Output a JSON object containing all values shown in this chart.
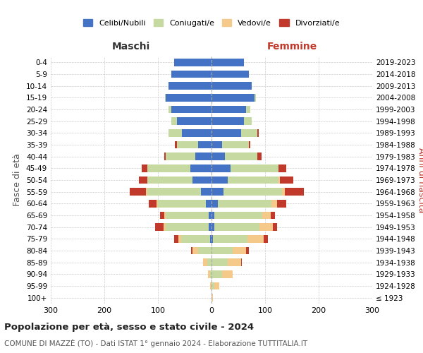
{
  "age_groups": [
    "100+",
    "95-99",
    "90-94",
    "85-89",
    "80-84",
    "75-79",
    "70-74",
    "65-69",
    "60-64",
    "55-59",
    "50-54",
    "45-49",
    "40-44",
    "35-39",
    "30-34",
    "25-29",
    "20-24",
    "15-19",
    "10-14",
    "5-9",
    "0-4"
  ],
  "birth_years": [
    "≤ 1923",
    "1924-1928",
    "1929-1933",
    "1934-1938",
    "1939-1943",
    "1944-1948",
    "1949-1953",
    "1954-1958",
    "1959-1963",
    "1964-1968",
    "1969-1973",
    "1974-1978",
    "1979-1983",
    "1984-1988",
    "1989-1993",
    "1994-1998",
    "1999-2003",
    "2004-2008",
    "2009-2013",
    "2014-2018",
    "2019-2023"
  ],
  "colors": {
    "celibe": "#4472C4",
    "coniugato": "#C5D9A0",
    "vedovo": "#F5C98A",
    "divorziato": "#C0392B"
  },
  "maschi": {
    "celibe": [
      0,
      0,
      0,
      0,
      0,
      2,
      5,
      5,
      10,
      20,
      35,
      40,
      30,
      25,
      55,
      65,
      75,
      85,
      80,
      75,
      70
    ],
    "coniugato": [
      0,
      0,
      2,
      8,
      25,
      55,
      80,
      80,
      90,
      100,
      85,
      80,
      55,
      40,
      25,
      10,
      5,
      2,
      0,
      0,
      0
    ],
    "vedovo": [
      0,
      2,
      5,
      8,
      10,
      5,
      5,
      3,
      2,
      2,
      0,
      0,
      0,
      0,
      0,
      0,
      0,
      0,
      0,
      0,
      0
    ],
    "divorziato": [
      0,
      0,
      0,
      0,
      3,
      8,
      15,
      8,
      15,
      30,
      15,
      10,
      3,
      3,
      0,
      0,
      0,
      0,
      0,
      0,
      0
    ]
  },
  "femmine": {
    "celibe": [
      0,
      0,
      0,
      0,
      0,
      2,
      5,
      5,
      12,
      22,
      30,
      35,
      25,
      20,
      55,
      60,
      65,
      80,
      75,
      70,
      60
    ],
    "coniugato": [
      0,
      5,
      20,
      30,
      40,
      65,
      85,
      90,
      100,
      110,
      95,
      90,
      60,
      50,
      30,
      15,
      8,
      3,
      0,
      0,
      0
    ],
    "vedovo": [
      2,
      10,
      20,
      25,
      25,
      30,
      25,
      15,
      10,
      5,
      3,
      0,
      0,
      0,
      0,
      0,
      0,
      0,
      0,
      0,
      0
    ],
    "divorziato": [
      0,
      0,
      0,
      2,
      5,
      8,
      8,
      8,
      18,
      35,
      25,
      15,
      8,
      3,
      3,
      0,
      0,
      0,
      0,
      0,
      0
    ]
  },
  "xlim": 300,
  "title_main": "Popolazione per età, sesso e stato civile - 2024",
  "title_sub1": "COMUNE DI MAZZÈ (TO) - Dati ISTAT 1° gennaio 2024 - Elaborazione TUTTITALIA.IT",
  "ylabel_left": "Fasce di età",
  "ylabel_right": "Anni di nascita",
  "xlabel_left": "Maschi",
  "xlabel_right": "Femmine",
  "legend_labels": [
    "Celibi/Nubili",
    "Coniugati/e",
    "Vedovi/e",
    "Divorziati/e"
  ],
  "bg_color": "#ffffff",
  "grid_color": "#cccccc"
}
